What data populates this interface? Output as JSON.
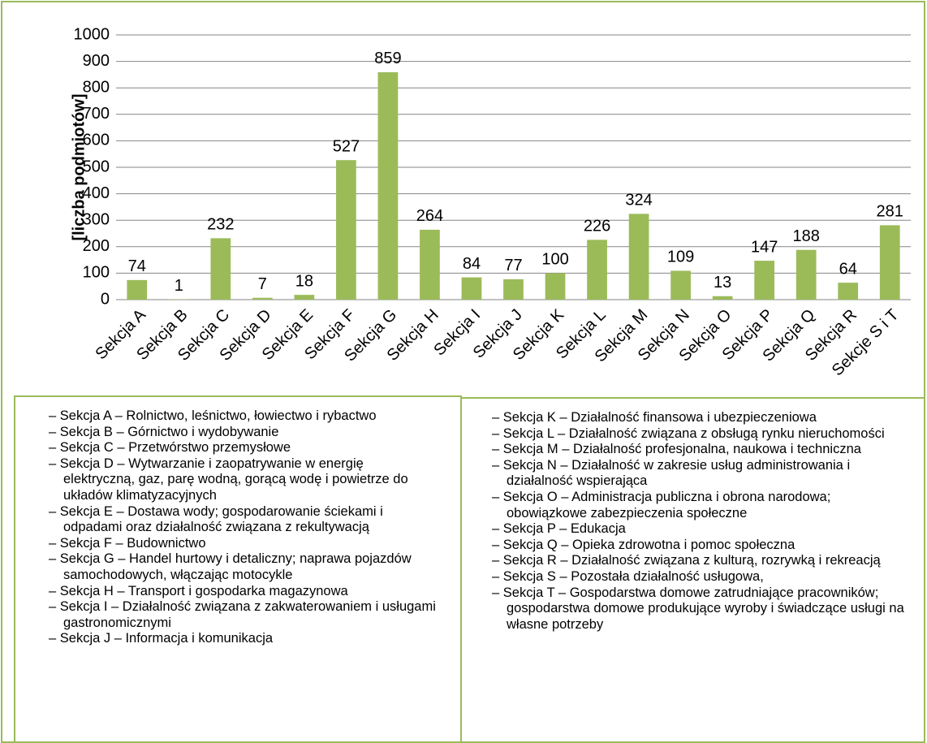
{
  "chart_data": {
    "type": "bar",
    "ylabel": "[liczba podmiotów]",
    "categories": [
      "Sekcja A",
      "Sekcja B",
      "Sekcja C",
      "Sekcja D",
      "Sekcja E",
      "Sekcja F",
      "Sekcja G",
      "Sekcja H",
      "Sekcja I",
      "Sekcja J",
      "Sekcja K",
      "Sekcja L",
      "Sekcja M",
      "Sekcja N",
      "Sekcja O",
      "Sekcja P",
      "Sekcja Q",
      "Sekcja R",
      "Sekcje S i T"
    ],
    "values": [
      74,
      1,
      232,
      7,
      18,
      527,
      859,
      264,
      84,
      77,
      100,
      226,
      324,
      109,
      13,
      147,
      188,
      64,
      281
    ],
    "color": "#9bbb59",
    "ylim": [
      0,
      1000
    ],
    "yticks": [
      0,
      100,
      200,
      300,
      400,
      500,
      600,
      700,
      800,
      900,
      1000
    ],
    "grid": true
  },
  "legend_left": [
    "– Sekcja A – Rolnictwo, leśnictwo, łowiectwo i rybactwo",
    "– Sekcja B – Górnictwo i wydobywanie",
    "– Sekcja C – Przetwórstwo przemysłowe",
    "– Sekcja D – Wytwarzanie i zaopatrywanie w energię elektryczną, gaz, parę wodną, gorącą wodę i powietrze do układów klimatyzacyjnych",
    "– Sekcja E – Dostawa wody; gospodarowanie ściekami i odpadami oraz działalność związana z rekultywacją",
    "– Sekcja F – Budownictwo",
    "– Sekcja G – Handel hurtowy i detaliczny; naprawa pojazdów samochodowych, włączając motocykle",
    "– Sekcja H – Transport i gospodarka magazynowa",
    "– Sekcja I – Działalność związana z zakwaterowaniem i usługami gastronomicznymi",
    "– Sekcja J – Informacja i komunikacja"
  ],
  "legend_right": [
    "– Sekcja K – Działalność finansowa i ubezpieczeniowa",
    "– Sekcja L – Działalność związana z obsługą rynku nieruchomości",
    "– Sekcja M – Działalność profesjonalna, naukowa i techniczna",
    "– Sekcja N – Działalność w zakresie usług administrowania i działalność wspierająca",
    "– Sekcja O – Administracja publiczna i obrona narodowa; obowiązkowe zabezpieczenia społeczne",
    "– Sekcja P – Edukacja",
    "– Sekcja Q – Opieka zdrowotna i pomoc społeczna",
    "– Sekcja R – Działalność związana z kulturą, rozrywką i rekreacją",
    "– Sekcja S – Pozostała działalność usługowa,",
    "– Sekcja T – Gospodarstwa domowe zatrudniające pracowników; gospodarstwa domowe produkujące wyroby i świadczące usługi na własne potrzeby"
  ]
}
